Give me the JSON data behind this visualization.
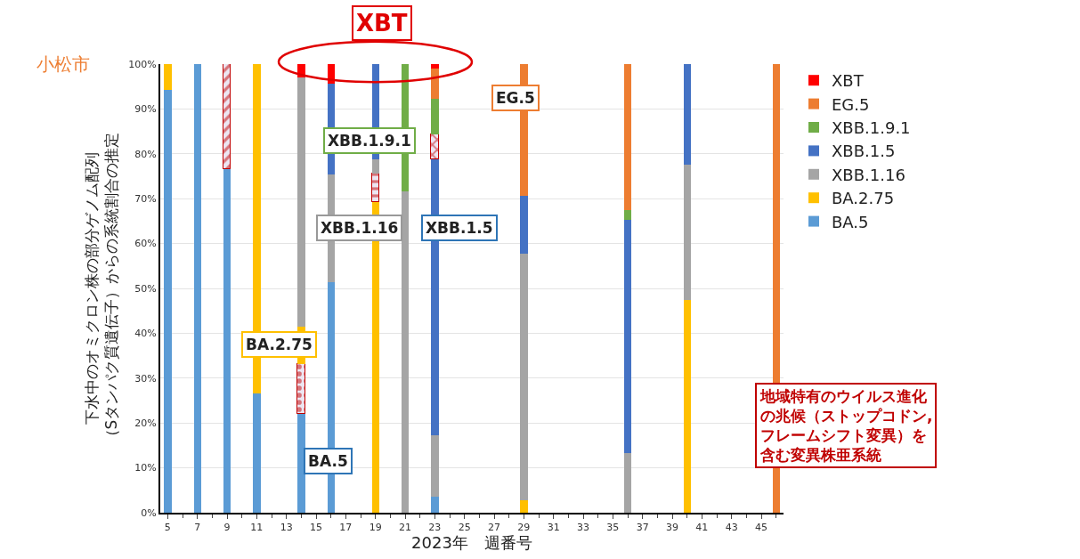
{
  "chart_data": {
    "type": "bar",
    "stacked": true,
    "title": "小松市",
    "xlabel": "2023年　週番号",
    "ylabel": "下水中のオミクロン株の部分ゲノム配列（Sタンパク質遺伝子）からの系統割合の推定",
    "x": [
      5,
      7,
      9,
      11,
      14,
      16,
      19,
      21,
      23,
      29,
      36,
      40,
      46
    ],
    "xlim": [
      4.5,
      46.5
    ],
    "xticks": [
      5,
      7,
      9,
      11,
      13,
      15,
      17,
      19,
      21,
      23,
      25,
      27,
      29,
      31,
      33,
      35,
      37,
      39,
      41,
      43,
      45
    ],
    "ylim": [
      0,
      100
    ],
    "yticks": [
      {
        "value": 0,
        "label": "0%"
      },
      {
        "value": 10,
        "label": "10%"
      },
      {
        "value": 20,
        "label": "20%"
      },
      {
        "value": 30,
        "label": "30%"
      },
      {
        "value": 40,
        "label": "40%"
      },
      {
        "value": 50,
        "label": "50%"
      },
      {
        "value": 60,
        "label": "60%"
      },
      {
        "value": 70,
        "label": "70%"
      },
      {
        "value": 80,
        "label": "80%"
      },
      {
        "value": 90,
        "label": "90%"
      },
      {
        "value": 100,
        "label": "100%"
      }
    ],
    "grid": "y",
    "legend": "right",
    "series": [
      {
        "name": "BA.5",
        "color": "#5b9bd5",
        "values": [
          94.3,
          100,
          76.5,
          26.6,
          22.1,
          51.4,
          null,
          null,
          3.5,
          null,
          null,
          null,
          null
        ]
      },
      {
        "color": "#c00000",
        "values": [
          null,
          null,
          23.5,
          null,
          null,
          null,
          null,
          null,
          null,
          null,
          null,
          null,
          null
        ]
      },
      {
        "color": "#c00000",
        "values": [
          null,
          null,
          null,
          null,
          11.1,
          null,
          null,
          null,
          null,
          null,
          null,
          null,
          null
        ]
      },
      {
        "name": "BA.2.75",
        "color": "#ffc000",
        "values": [
          5.7,
          null,
          null,
          73.4,
          8.2,
          null,
          69.3,
          null,
          null,
          2.7,
          null,
          47.5,
          null
        ]
      },
      {
        "color": "#c00000",
        "values": [
          null,
          null,
          null,
          null,
          null,
          null,
          6.3,
          null,
          null,
          null,
          null,
          null,
          null
        ]
      },
      {
        "name": "XBB.1.16",
        "color": "#a5a5a5",
        "values": [
          null,
          null,
          null,
          null,
          55.6,
          24.0,
          3.2,
          71.6,
          13.7,
          55.0,
          13.2,
          30.0,
          null
        ]
      },
      {
        "name": "XBB.1.5",
        "color": "#4472c4",
        "values": [
          null,
          null,
          null,
          null,
          null,
          20.2,
          21.3,
          null,
          61.5,
          13.0,
          52.0,
          22.5,
          null
        ]
      },
      {
        "color": "#c00000",
        "values": [
          null,
          null,
          null,
          null,
          null,
          null,
          null,
          null,
          5.6,
          null,
          null,
          null,
          null
        ]
      },
      {
        "name": "XBB.1.9.1",
        "color": "#70ad47",
        "values": [
          null,
          null,
          null,
          null,
          null,
          null,
          null,
          28.4,
          8.0,
          null,
          2.2,
          null,
          null
        ]
      },
      {
        "name": "EG.5",
        "color": "#ed7d31",
        "values": [
          null,
          null,
          null,
          null,
          null,
          null,
          null,
          null,
          6.7,
          29.3,
          32.6,
          null,
          100
        ]
      },
      {
        "name": "XBT",
        "color": "#ff0000",
        "values": [
          null,
          null,
          null,
          null,
          3.0,
          4.4,
          null,
          null,
          1.0,
          null,
          null,
          null,
          null
        ]
      }
    ],
    "annotations": [
      "XBT",
      "EG.5",
      "XBB.1.9.1",
      "XBB.1.5",
      "XBB.1.16",
      "BA.2.75",
      "BA.5",
      "地域特有のウイルス進化の兆候（ストップコドン,フレームシフト変異）を含む変異株亜系統"
    ]
  }
}
